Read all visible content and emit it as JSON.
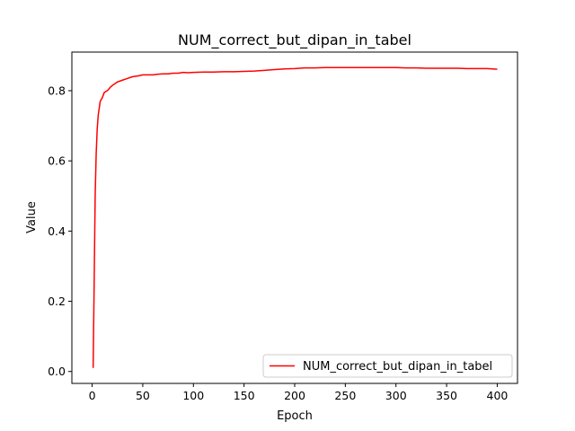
{
  "chart_data": {
    "type": "line",
    "title": "NUM_correct_but_dipan_in_tabel",
    "xlabel": "Epoch",
    "ylabel": "Value",
    "xlim": [
      -20,
      420
    ],
    "ylim": [
      -0.034,
      0.91
    ],
    "xticks": [
      0,
      50,
      100,
      150,
      200,
      250,
      300,
      350,
      400
    ],
    "yticks": [
      0.0,
      0.2,
      0.4,
      0.6,
      0.8
    ],
    "xtick_labels": [
      "0",
      "50",
      "100",
      "150",
      "200",
      "250",
      "300",
      "350",
      "400"
    ],
    "ytick_labels": [
      "0.0",
      "0.2",
      "0.4",
      "0.6",
      "0.8"
    ],
    "grid": false,
    "legend_position": "lower right",
    "series": [
      {
        "name": "NUM_correct_but_dipan_in_tabel",
        "color": "#ff0000",
        "x": [
          1,
          2,
          3,
          4,
          5,
          6,
          7,
          8,
          10,
          12,
          15,
          18,
          20,
          25,
          30,
          35,
          40,
          45,
          50,
          55,
          60,
          65,
          70,
          75,
          80,
          85,
          90,
          95,
          100,
          110,
          120,
          130,
          140,
          150,
          160,
          170,
          180,
          190,
          200,
          210,
          220,
          230,
          240,
          250,
          260,
          270,
          280,
          290,
          300,
          310,
          320,
          330,
          340,
          350,
          360,
          370,
          380,
          390,
          400
        ],
        "y": [
          0.01,
          0.25,
          0.5,
          0.62,
          0.69,
          0.73,
          0.75,
          0.77,
          0.78,
          0.795,
          0.8,
          0.81,
          0.815,
          0.825,
          0.83,
          0.835,
          0.84,
          0.842,
          0.845,
          0.845,
          0.845,
          0.847,
          0.848,
          0.848,
          0.85,
          0.85,
          0.852,
          0.851,
          0.852,
          0.853,
          0.853,
          0.854,
          0.854,
          0.855,
          0.856,
          0.858,
          0.86,
          0.862,
          0.863,
          0.865,
          0.865,
          0.866,
          0.866,
          0.866,
          0.866,
          0.866,
          0.866,
          0.866,
          0.866,
          0.865,
          0.865,
          0.864,
          0.864,
          0.864,
          0.864,
          0.863,
          0.863,
          0.863,
          0.861
        ]
      }
    ]
  }
}
